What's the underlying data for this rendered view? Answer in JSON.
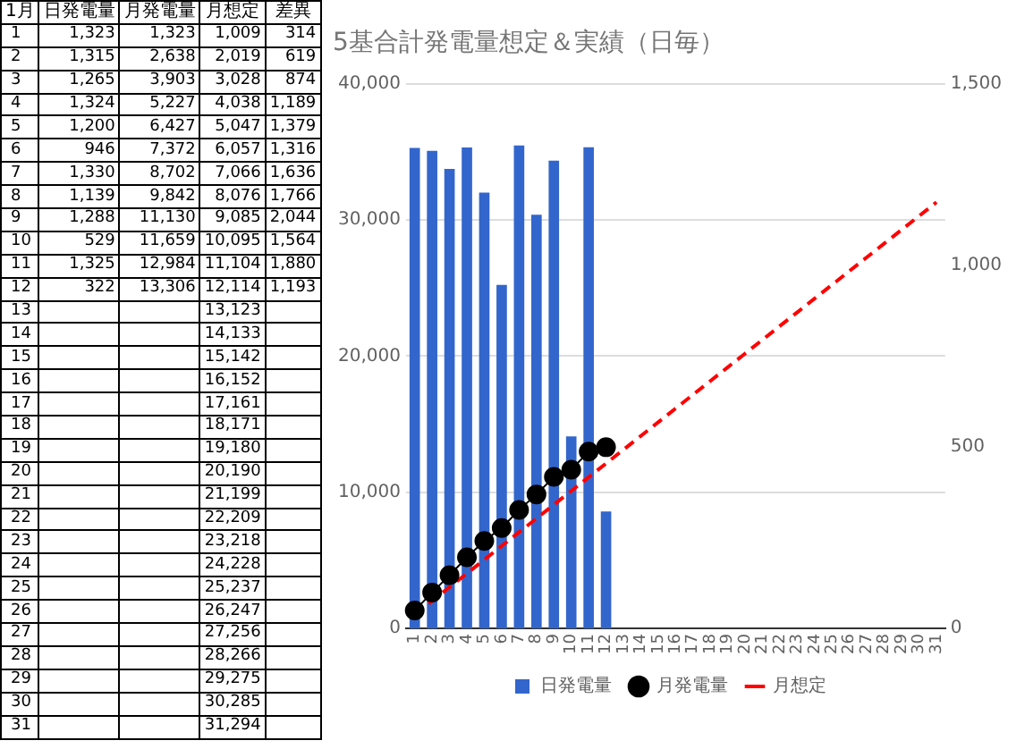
{
  "chart_data": [
    {
      "type": "heatmap",
      "ylabel": "1月",
      "categories": [
        "日発電量",
        "月発電量",
        "月想定",
        "差異"
      ],
      "y_categories": [
        "1",
        "2",
        "3",
        "4",
        "5",
        "6",
        "7",
        "8",
        "9",
        "10",
        "11",
        "12",
        "13",
        "14",
        "15",
        "16",
        "17",
        "18",
        "19",
        "20",
        "21",
        "22",
        "23",
        "24",
        "25",
        "26",
        "27",
        "28",
        "29",
        "30",
        "31"
      ],
      "cells": [
        [
          1323,
          1323,
          1009,
          314
        ],
        [
          1315,
          2638,
          2019,
          619
        ],
        [
          1265,
          3903,
          3028,
          874
        ],
        [
          1324,
          5227,
          4038,
          1189
        ],
        [
          1200,
          6427,
          5047,
          1379
        ],
        [
          946,
          7372,
          6057,
          1316
        ],
        [
          1330,
          8702,
          7066,
          1636
        ],
        [
          1139,
          9842,
          8076,
          1766
        ],
        [
          1288,
          11130,
          9085,
          2044
        ],
        [
          529,
          11659,
          10095,
          1564
        ],
        [
          1325,
          12984,
          11104,
          1880
        ],
        [
          322,
          13306,
          12114,
          1193
        ],
        [
          null,
          null,
          13123,
          null
        ],
        [
          null,
          null,
          14133,
          null
        ],
        [
          null,
          null,
          15142,
          null
        ],
        [
          null,
          null,
          16152,
          null
        ],
        [
          null,
          null,
          17161,
          null
        ],
        [
          null,
          null,
          18171,
          null
        ],
        [
          null,
          null,
          19180,
          null
        ],
        [
          null,
          null,
          20190,
          null
        ],
        [
          null,
          null,
          21199,
          null
        ],
        [
          null,
          null,
          22209,
          null
        ],
        [
          null,
          null,
          23218,
          null
        ],
        [
          null,
          null,
          24228,
          null
        ],
        [
          null,
          null,
          25237,
          null
        ],
        [
          null,
          null,
          26247,
          null
        ],
        [
          null,
          null,
          27256,
          null
        ],
        [
          null,
          null,
          28266,
          null
        ],
        [
          null,
          null,
          29275,
          null
        ],
        [
          null,
          null,
          30285,
          null
        ],
        [
          null,
          null,
          31294,
          null
        ]
      ],
      "cell_labels": [
        [
          "1,323",
          "1,323",
          "1,009",
          "314"
        ],
        [
          "1,315",
          "2,638",
          "2,019",
          "619"
        ],
        [
          "1,265",
          "3,903",
          "3,028",
          "874"
        ],
        [
          "1,324",
          "5,227",
          "4,038",
          "1,189"
        ],
        [
          "1,200",
          "6,427",
          "5,047",
          "1,379"
        ],
        [
          "946",
          "7,372",
          "6,057",
          "1,316"
        ],
        [
          "1,330",
          "8,702",
          "7,066",
          "1,636"
        ],
        [
          "1,139",
          "9,842",
          "8,076",
          "1,766"
        ],
        [
          "1,288",
          "11,130",
          "9,085",
          "2,044"
        ],
        [
          "529",
          "11,659",
          "10,095",
          "1,564"
        ],
        [
          "1,325",
          "12,984",
          "11,104",
          "1,880"
        ],
        [
          "322",
          "13,306",
          "12,114",
          "1,193"
        ],
        [
          null,
          null,
          "13,123",
          null
        ],
        [
          null,
          null,
          "14,133",
          null
        ],
        [
          null,
          null,
          "15,142",
          null
        ],
        [
          null,
          null,
          "16,152",
          null
        ],
        [
          null,
          null,
          "17,161",
          null
        ],
        [
          null,
          null,
          "18,171",
          null
        ],
        [
          null,
          null,
          "19,180",
          null
        ],
        [
          null,
          null,
          "20,190",
          null
        ],
        [
          null,
          null,
          "21,199",
          null
        ],
        [
          null,
          null,
          "22,209",
          null
        ],
        [
          null,
          null,
          "23,218",
          null
        ],
        [
          null,
          null,
          "24,228",
          null
        ],
        [
          null,
          null,
          "25,237",
          null
        ],
        [
          null,
          null,
          "26,247",
          null
        ],
        [
          null,
          null,
          "27,256",
          null
        ],
        [
          null,
          null,
          "28,266",
          null
        ],
        [
          null,
          null,
          "29,275",
          null
        ],
        [
          null,
          null,
          "30,285",
          null
        ],
        [
          null,
          null,
          "31,294",
          null
        ]
      ]
    },
    {
      "type": "bar",
      "title": "5基合計発電量想定＆実績（日毎）",
      "categories": [
        "1",
        "2",
        "3",
        "4",
        "5",
        "6",
        "7",
        "8",
        "9",
        "10",
        "11",
        "12",
        "13",
        "14",
        "15",
        "16",
        "17",
        "18",
        "19",
        "20",
        "21",
        "22",
        "23",
        "24",
        "25",
        "26",
        "27",
        "28",
        "29",
        "30",
        "31"
      ],
      "series": [
        {
          "name": "日発電量",
          "type": "bar",
          "axis": "y2",
          "color": "#3366cc",
          "values": [
            1323,
            1315,
            1265,
            1324,
            1200,
            946,
            1330,
            1139,
            1288,
            529,
            1325,
            322,
            null,
            null,
            null,
            null,
            null,
            null,
            null,
            null,
            null,
            null,
            null,
            null,
            null,
            null,
            null,
            null,
            null,
            null,
            null
          ]
        },
        {
          "name": "月発電量",
          "type": "line",
          "marker": "circle",
          "color": "#000000",
          "values": [
            1323,
            2638,
            3903,
            5227,
            6427,
            7372,
            8702,
            9842,
            11130,
            11659,
            12984,
            13306,
            null,
            null,
            null,
            null,
            null,
            null,
            null,
            null,
            null,
            null,
            null,
            null,
            null,
            null,
            null,
            null,
            null,
            null,
            null
          ]
        },
        {
          "name": "月想定",
          "type": "line",
          "line_style": "dashed",
          "color": "#ff0000",
          "values": [
            1009,
            2019,
            3028,
            4038,
            5047,
            6057,
            7066,
            8076,
            9085,
            10095,
            11104,
            12114,
            13123,
            14133,
            15142,
            16152,
            17161,
            18171,
            19180,
            20190,
            21199,
            22209,
            23218,
            24228,
            25237,
            26247,
            27256,
            28266,
            29275,
            30285,
            31294
          ]
        }
      ],
      "ylim": [
        0,
        40000
      ],
      "yticks": [
        0,
        {
          "value": 10000,
          "label": "10,000"
        },
        {
          "value": 20000,
          "label": "20,000"
        },
        {
          "value": 30000,
          "label": "30,000"
        },
        {
          "value": 40000,
          "label": "40,000"
        }
      ],
      "y2lim": [
        0,
        1500
      ],
      "y2ticks": [
        0,
        500,
        {
          "value": 1000,
          "label": "1,000"
        },
        {
          "value": 1500,
          "label": "1,500"
        }
      ],
      "grid": "y",
      "legend": "bottom"
    }
  ]
}
